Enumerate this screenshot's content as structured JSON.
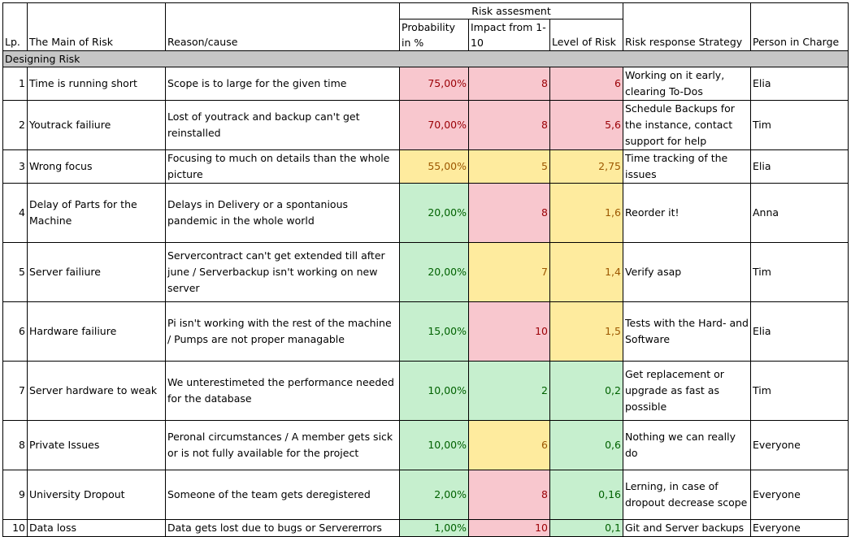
{
  "header": {
    "group": "Risk assesment",
    "lp": "Lp.",
    "main": "The Main of Risk",
    "reason": "Reason/cause",
    "probability": "Probability in %",
    "impact": "Impact from 1-10",
    "level": "Level of Risk",
    "strategy": "Risk response Strategy",
    "person": "Person in Charge"
  },
  "section": "Designing Risk",
  "colors": {
    "red_bg": "#f8c7ce",
    "red_text": "#9b0006",
    "yellow_bg": "#feeb9e",
    "yellow_text": "#9c5700",
    "green_bg": "#c6efce",
    "green_text": "#006100",
    "section_bg": "#c6c6c6"
  },
  "rows": [
    {
      "lp": "1",
      "main": "Time is running short",
      "reason": "Scope is to large for the given time",
      "prob": "75,00%",
      "prob_level": "red",
      "impact": "8",
      "impact_level": "red",
      "level": "6",
      "level_level": "red",
      "strategy": "Working on it early, clearing To-Dos",
      "person": "Elia"
    },
    {
      "lp": "2",
      "main": "Youtrack failiure",
      "reason": "Lost of youtrack and backup can't get reinstalled",
      "prob": "70,00%",
      "prob_level": "red",
      "impact": "8",
      "impact_level": "red",
      "level": "5,6",
      "level_level": "red",
      "strategy": "Schedule Backups for the instance, contact support for help",
      "person": "Tim"
    },
    {
      "lp": "3",
      "main": "Wrong focus",
      "reason": "Focusing to much on details than the whole picture",
      "prob": "55,00%",
      "prob_level": "yel",
      "impact": "5",
      "impact_level": "yel",
      "level": "2,75",
      "level_level": "yel",
      "strategy": "Time tracking of the issues",
      "person": "Elia"
    },
    {
      "lp": "4",
      "main": "Delay of Parts for the Machine",
      "reason": "Delays in Delivery or a spontanious pandemic in the whole world",
      "prob": "20,00%",
      "prob_level": "grn",
      "impact": "8",
      "impact_level": "red",
      "level": "1,6",
      "level_level": "yel",
      "strategy": "Reorder it!",
      "person": "Anna"
    },
    {
      "lp": "5",
      "main": "Server failiure",
      "reason": "Servercontract can't get extended till after june / Serverbackup isn't working on new server",
      "prob": "20,00%",
      "prob_level": "grn",
      "impact": "7",
      "impact_level": "yel",
      "level": "1,4",
      "level_level": "yel",
      "strategy": "Verify asap",
      "person": "Tim"
    },
    {
      "lp": "6",
      "main": "Hardware failiure",
      "reason": "Pi isn't working with the rest of the machine / Pumps are not proper managable",
      "prob": "15,00%",
      "prob_level": "grn",
      "impact": "10",
      "impact_level": "red",
      "level": "1,5",
      "level_level": "yel",
      "strategy": "Tests with the Hard- and Software",
      "person": "Elia"
    },
    {
      "lp": "7",
      "main": "Server hardware to weak",
      "reason": "We unterestimeted  the performance needed for the database",
      "prob": "10,00%",
      "prob_level": "grn",
      "impact": "2",
      "impact_level": "grn",
      "level": "0,2",
      "level_level": "grn",
      "strategy": "Get replacement or upgrade as fast as possible",
      "person": "Tim"
    },
    {
      "lp": "8",
      "main": "Private Issues",
      "reason": "Peronal circumstances / A member gets sick or is not fully available for the project",
      "prob": "10,00%",
      "prob_level": "grn",
      "impact": "6",
      "impact_level": "yel",
      "level": "0,6",
      "level_level": "grn",
      "strategy": "Nothing we can really do",
      "person": "Everyone"
    },
    {
      "lp": "9",
      "main": "University Dropout",
      "reason": "Someone of the team gets deregistered",
      "prob": "2,00%",
      "prob_level": "grn",
      "impact": "8",
      "impact_level": "red",
      "level": "0,16",
      "level_level": "grn",
      "strategy": "Lerning,  in case of dropout decrease scope",
      "person": "Everyone"
    },
    {
      "lp": "10",
      "main": "Data loss",
      "reason": "Data gets lost due to bugs or Servererrors",
      "prob": "1,00%",
      "prob_level": "grn",
      "impact": "10",
      "impact_level": "red",
      "level": "0,1",
      "level_level": "grn",
      "strategy": "Git and Server backups",
      "person": "Everyone"
    }
  ]
}
